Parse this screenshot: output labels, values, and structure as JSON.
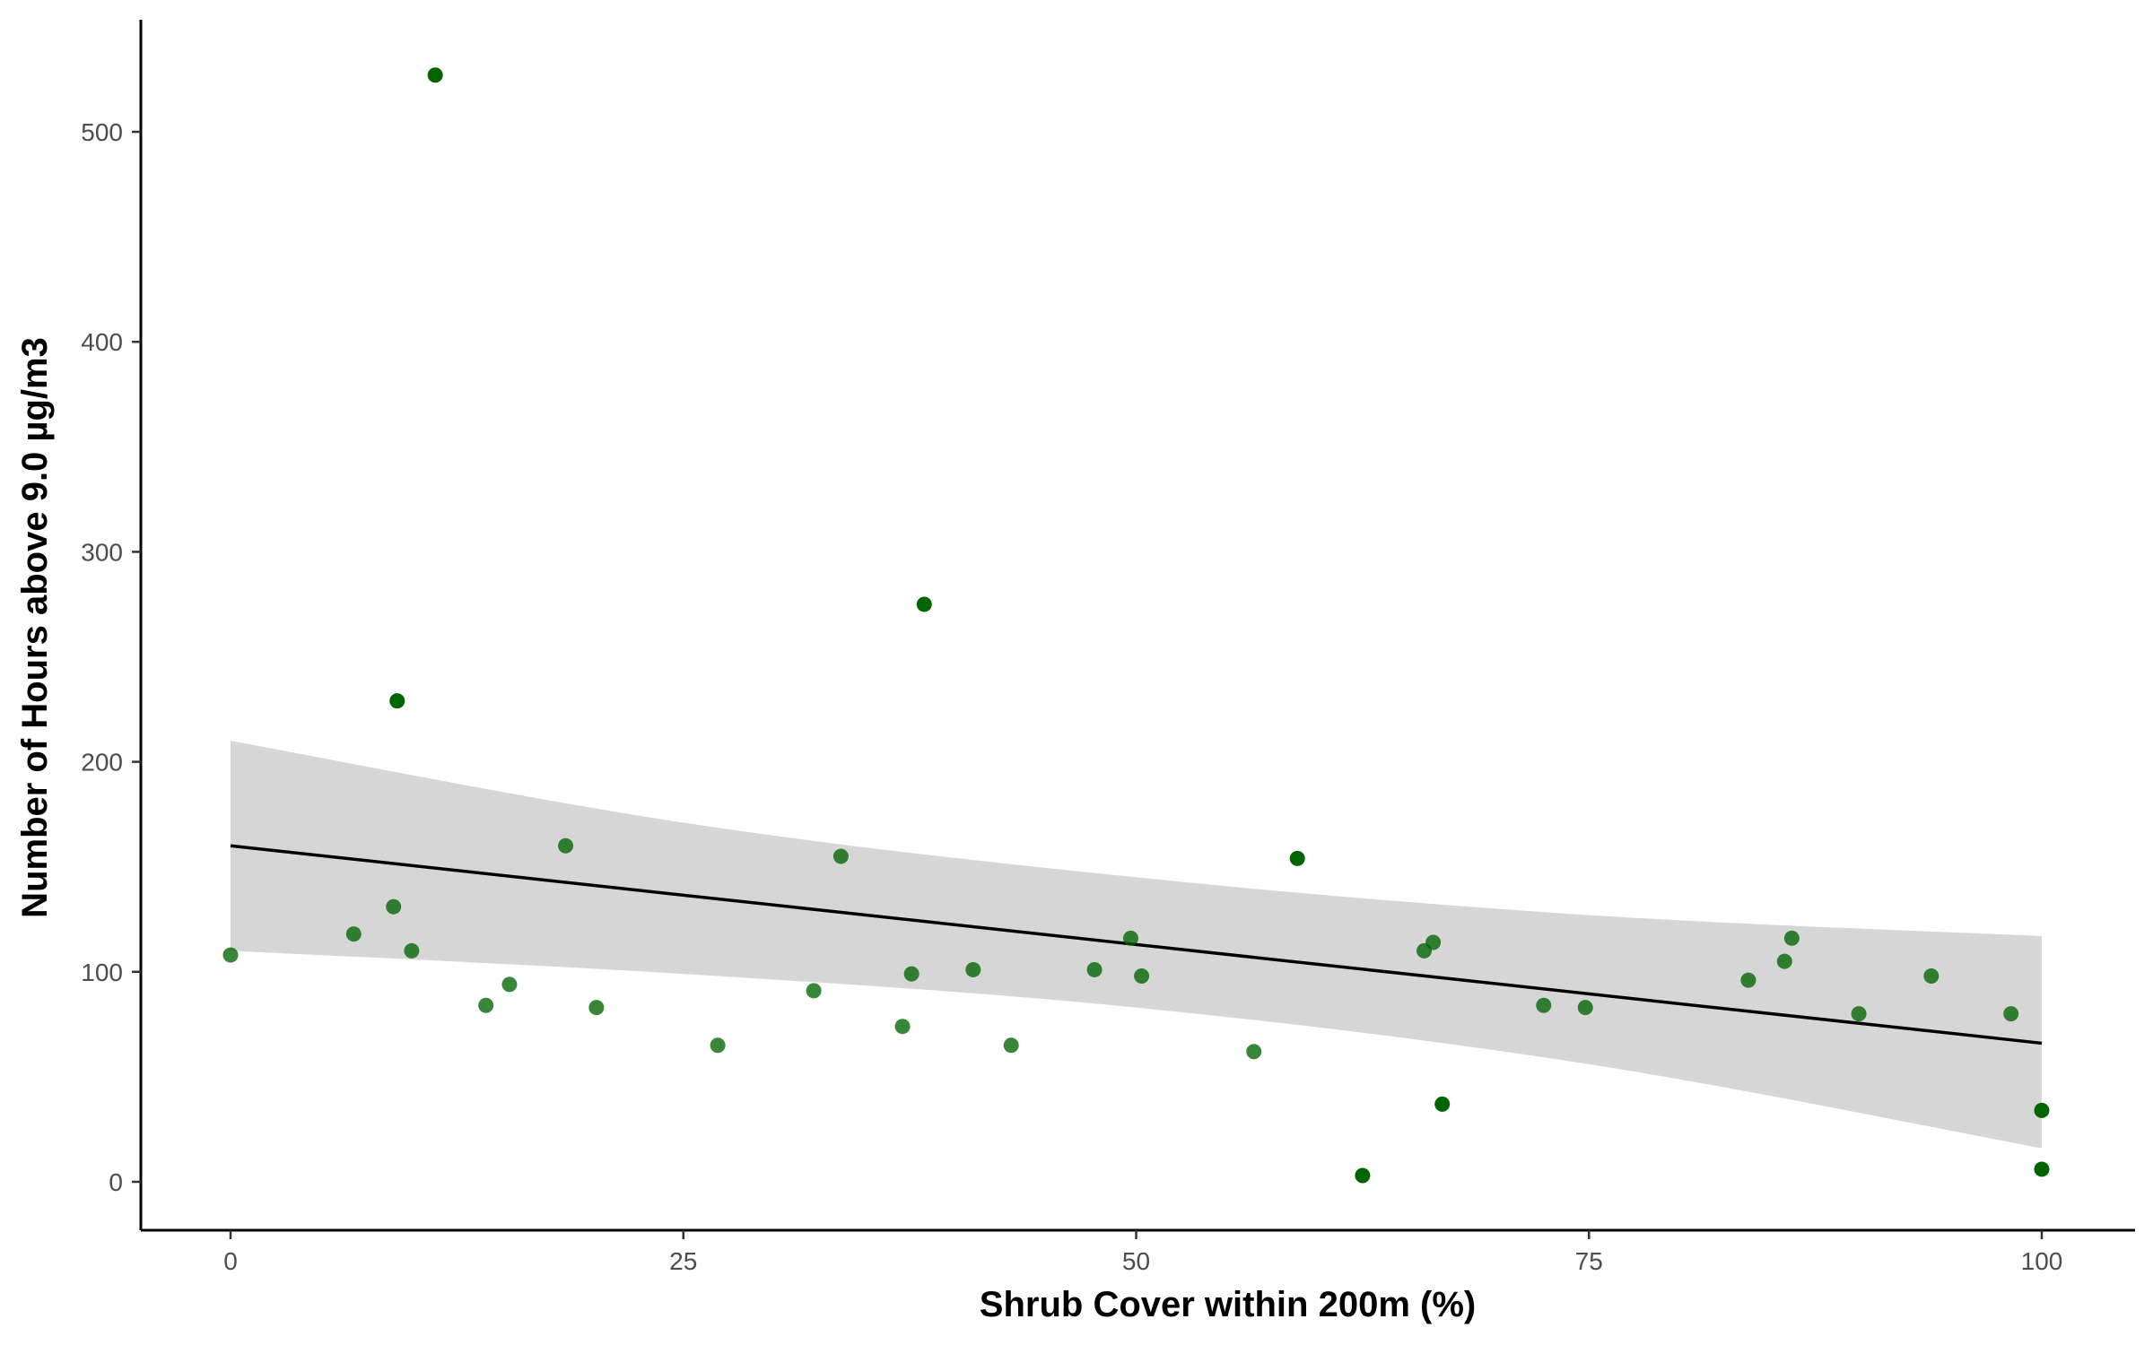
{
  "chart_data": {
    "type": "scatter",
    "title": "",
    "xlabel": "Shrub Cover within 200m (%)",
    "ylabel": "Number of Hours above 9.0 µg/m3",
    "xlim": [
      -5,
      105
    ],
    "ylim": [
      -22,
      553
    ],
    "xticks": [
      "0",
      "25",
      "50",
      "75",
      "100"
    ],
    "yticks": [
      "0",
      "100",
      "200",
      "300",
      "400",
      "500"
    ],
    "grid": false,
    "legend": "none",
    "colors": {
      "point": "#006400",
      "fit_line": "#000000",
      "ribbon": "#d6d6d6",
      "axis": "#000000"
    },
    "points": [
      {
        "x": 0.0,
        "y": 108
      },
      {
        "x": 6.8,
        "y": 118
      },
      {
        "x": 9.0,
        "y": 131
      },
      {
        "x": 9.2,
        "y": 229
      },
      {
        "x": 10.0,
        "y": 110
      },
      {
        "x": 11.3,
        "y": 527
      },
      {
        "x": 14.1,
        "y": 84
      },
      {
        "x": 15.4,
        "y": 94
      },
      {
        "x": 18.5,
        "y": 160
      },
      {
        "x": 20.2,
        "y": 83
      },
      {
        "x": 26.9,
        "y": 65
      },
      {
        "x": 32.2,
        "y": 91
      },
      {
        "x": 33.7,
        "y": 155
      },
      {
        "x": 37.1,
        "y": 74
      },
      {
        "x": 37.6,
        "y": 99
      },
      {
        "x": 38.3,
        "y": 275
      },
      {
        "x": 41.0,
        "y": 101
      },
      {
        "x": 43.1,
        "y": 65
      },
      {
        "x": 47.7,
        "y": 101
      },
      {
        "x": 49.7,
        "y": 116
      },
      {
        "x": 50.3,
        "y": 98
      },
      {
        "x": 56.5,
        "y": 62
      },
      {
        "x": 58.9,
        "y": 154
      },
      {
        "x": 62.5,
        "y": 3
      },
      {
        "x": 65.9,
        "y": 110
      },
      {
        "x": 66.4,
        "y": 114
      },
      {
        "x": 66.9,
        "y": 37
      },
      {
        "x": 72.5,
        "y": 84
      },
      {
        "x": 74.8,
        "y": 83
      },
      {
        "x": 83.8,
        "y": 96
      },
      {
        "x": 85.8,
        "y": 105
      },
      {
        "x": 86.2,
        "y": 116
      },
      {
        "x": 89.9,
        "y": 80
      },
      {
        "x": 93.9,
        "y": 98
      },
      {
        "x": 98.3,
        "y": 80
      },
      {
        "x": 100.0,
        "y": 34
      },
      {
        "x": 100.0,
        "y": 6
      }
    ],
    "fit": {
      "type": "linear",
      "x": [
        0,
        100
      ],
      "y": [
        160,
        66
      ]
    },
    "confidence_band": {
      "x": [
        0,
        25,
        50,
        75,
        100
      ],
      "upper": [
        210,
        171,
        145,
        127,
        117
      ],
      "lower": [
        110,
        99,
        83,
        56,
        16
      ]
    }
  }
}
